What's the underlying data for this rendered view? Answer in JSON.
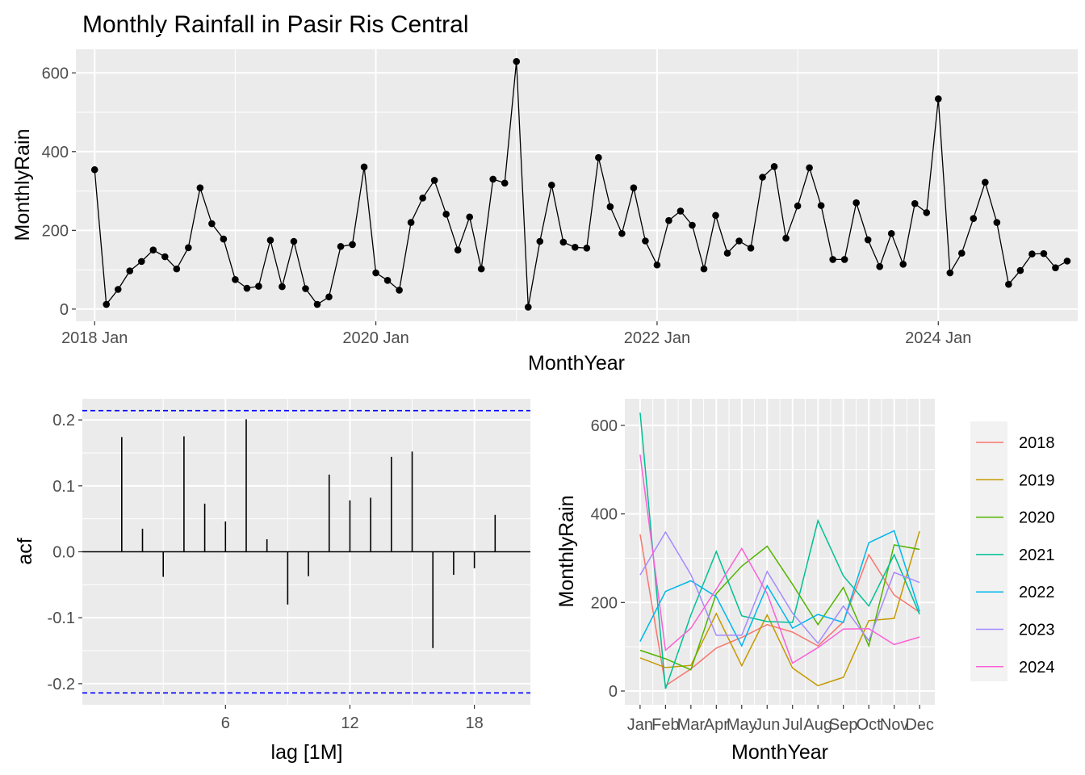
{
  "chart_data": [
    {
      "id": "timeseries",
      "type": "line",
      "title": "Monthly Rainfall in Pasir Ris Central",
      "xlabel": "MonthYear",
      "ylabel": "MonthlyRain",
      "x_start": "2018 Jan",
      "x_tick_labels": [
        "2018 Jan",
        "2020 Jan",
        "2022 Jan",
        "2024 Jan"
      ],
      "y_ticks": [
        0,
        200,
        400,
        600
      ],
      "xlim_months": [
        -1.6,
        83.9
      ],
      "ylim": [
        -31,
        660
      ],
      "grid": true,
      "values": [
        354,
        12,
        50,
        97,
        121,
        150,
        133,
        102,
        156,
        308,
        217,
        178,
        75,
        53,
        58,
        175,
        57,
        172,
        52,
        12,
        31,
        159,
        164,
        361,
        92,
        73,
        48,
        220,
        282,
        327,
        241,
        150,
        234,
        102,
        330,
        320,
        629,
        5,
        172,
        315,
        170,
        157,
        155,
        385,
        260,
        192,
        308,
        173,
        112,
        225,
        249,
        213,
        102,
        238,
        142,
        173,
        155,
        335,
        362,
        180,
        262,
        359,
        263,
        126,
        126,
        270,
        176,
        108,
        192,
        114,
        268,
        245,
        534,
        92,
        142,
        230,
        322,
        220,
        63,
        98,
        140,
        141,
        105,
        122
      ]
    },
    {
      "id": "acf",
      "type": "bar",
      "xlabel": "lag [1M]",
      "ylabel": "acf",
      "x_ticks": [
        6,
        12,
        18
      ],
      "y_ticks": [
        -0.2,
        -0.1,
        0.0,
        0.1,
        0.2
      ],
      "xlim": [
        -0.9,
        20.7
      ],
      "ylim": [
        -0.232,
        0.232
      ],
      "confidence_bound": 0.214,
      "lags": [
        1,
        2,
        3,
        4,
        5,
        6,
        7,
        8,
        9,
        10,
        11,
        12,
        13,
        14,
        15,
        16,
        17,
        18,
        19
      ],
      "values": [
        0.174,
        0.035,
        -0.038,
        0.175,
        0.073,
        0.046,
        0.201,
        0.019,
        -0.08,
        -0.037,
        0.117,
        0.078,
        0.082,
        0.144,
        0.152,
        -0.146,
        -0.035,
        -0.025,
        0.056
      ]
    },
    {
      "id": "seasonal",
      "type": "line",
      "xlabel": "MonthYear",
      "ylabel": "MonthlyRain",
      "categories": [
        "Jan",
        "Feb",
        "Mar",
        "Apr",
        "May",
        "Jun",
        "Jul",
        "Aug",
        "Sep",
        "Oct",
        "Nov",
        "Dec"
      ],
      "y_ticks": [
        0,
        200,
        400,
        600
      ],
      "ylim": [
        -31,
        660
      ],
      "legend_position": "right",
      "series": [
        {
          "name": "2018",
          "color": "#F8766D",
          "values": [
            354,
            12,
            50,
            97,
            121,
            150,
            133,
            102,
            156,
            308,
            217,
            178
          ]
        },
        {
          "name": "2019",
          "color": "#C49A00",
          "values": [
            75,
            53,
            58,
            175,
            57,
            172,
            52,
            12,
            31,
            159,
            164,
            361
          ]
        },
        {
          "name": "2020",
          "color": "#53B400",
          "values": [
            92,
            73,
            48,
            220,
            282,
            327,
            241,
            150,
            234,
            102,
            330,
            320
          ]
        },
        {
          "name": "2021",
          "color": "#00C094",
          "values": [
            629,
            5,
            172,
            315,
            170,
            157,
            155,
            385,
            260,
            192,
            308,
            173
          ]
        },
        {
          "name": "2022",
          "color": "#00B6EB",
          "values": [
            112,
            225,
            249,
            213,
            102,
            238,
            142,
            173,
            155,
            335,
            362,
            180
          ]
        },
        {
          "name": "2023",
          "color": "#A58AFF",
          "values": [
            262,
            359,
            263,
            126,
            126,
            270,
            176,
            108,
            192,
            114,
            268,
            245
          ]
        },
        {
          "name": "2024",
          "color": "#FB61D7",
          "values": [
            534,
            92,
            142,
            230,
            322,
            220,
            63,
            98,
            140,
            141,
            105,
            122
          ]
        }
      ]
    }
  ]
}
